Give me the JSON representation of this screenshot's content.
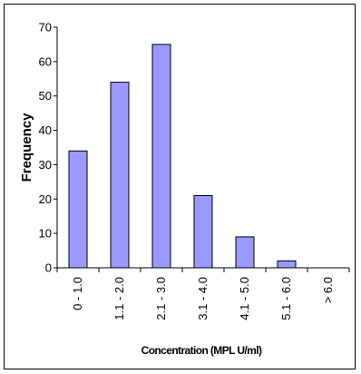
{
  "chart_data": {
    "type": "bar",
    "categories": [
      "0 - 1.0",
      "1.1 - 2.0",
      "2.1 - 3.0",
      "3.1 - 4.0",
      "4.1 - 5.0",
      "5.1 - 6.0",
      "> 6.0"
    ],
    "values": [
      34,
      54,
      65,
      21,
      9,
      2,
      0
    ],
    "xlabel": "Concentration (MPL U/ml)",
    "ylabel": "Frequency",
    "ylim": [
      0,
      70
    ],
    "yticks": [
      0,
      10,
      20,
      30,
      40,
      50,
      60,
      70
    ],
    "grid": false,
    "legend": "none",
    "bar_fill": "#9999ff",
    "bar_stroke": "#000000"
  }
}
